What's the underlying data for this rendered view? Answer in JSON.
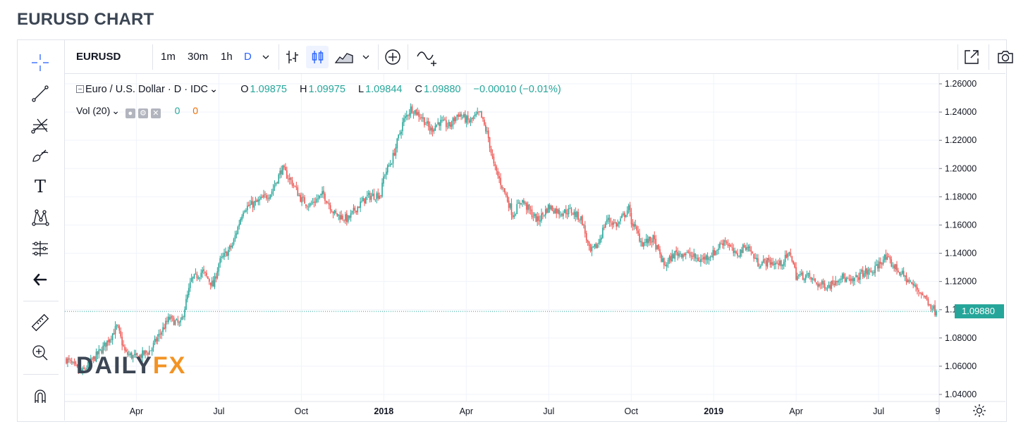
{
  "page": {
    "title": "EURUSD CHART"
  },
  "top_toolbar": {
    "symbol": "EURUSD",
    "intervals": [
      {
        "label": "1m",
        "active": false
      },
      {
        "label": "30m",
        "active": false
      },
      {
        "label": "1h",
        "active": false
      },
      {
        "label": "D",
        "active": true
      }
    ],
    "icons": [
      "chevron-down-icon",
      "bars-icon",
      "candles-icon",
      "area-chart-icon",
      "chevron-down-icon",
      "compare-add-icon",
      "indicators-icon",
      "fullscreen-icon",
      "screenshot-camera-icon"
    ]
  },
  "left_toolbar": {
    "tools": [
      "crosshair-icon",
      "trendline-icon",
      "fib-tool-icon",
      "brush-icon",
      "text-tool-icon",
      "pattern-tool-icon",
      "prediction-tool-icon",
      "back-arrow-icon",
      "ruler-icon",
      "zoom-in-icon",
      "magnet-icon"
    ],
    "text_tool_glyph": "T"
  },
  "legend": {
    "symbol_name": "Euro / U.S. Dollar · D · IDC",
    "open_label": "O",
    "open_value": "1.09875",
    "high_label": "H",
    "high_value": "1.09975",
    "low_label": "L",
    "low_value": "1.09844",
    "close_label": "C",
    "close_value": "1.09880",
    "change": "−0.00010 (−0.01%)",
    "volume_label": "Vol (20)",
    "volume_value_1": "0",
    "volume_value_2": "0"
  },
  "watermark": {
    "part1": "DAILY",
    "part2": "FX"
  },
  "last_price": "1.09880",
  "colors": {
    "up": "#26a69a",
    "down": "#ef5350",
    "accent": "#2962ff",
    "brand_orange": "#f39323",
    "grid": "#f0f3fa"
  },
  "chart_data": {
    "type": "candlestick",
    "title": "",
    "xlabel": "",
    "ylabel": "",
    "ylim": [
      1.033,
      1.264
    ],
    "y_ticks": [
      "1.26000",
      "1.24000",
      "1.22000",
      "1.20000",
      "1.18000",
      "1.16000",
      "1.14000",
      "1.12000",
      "1.10000",
      "1.08000",
      "1.06000",
      "1.04000"
    ],
    "x_ticks": [
      {
        "label": "Apr",
        "bold": false,
        "t": 2.0
      },
      {
        "label": "Jul",
        "bold": false,
        "t": 5.0
      },
      {
        "label": "Oct",
        "bold": false,
        "t": 8.0
      },
      {
        "label": "2018",
        "bold": true,
        "t": 11.0
      },
      {
        "label": "Apr",
        "bold": false,
        "t": 14.0
      },
      {
        "label": "Jul",
        "bold": false,
        "t": 17.0
      },
      {
        "label": "Oct",
        "bold": false,
        "t": 20.0
      },
      {
        "label": "2019",
        "bold": true,
        "t": 23.0
      },
      {
        "label": "Apr",
        "bold": false,
        "t": 26.0
      },
      {
        "label": "Jul",
        "bold": false,
        "t": 29.0
      },
      {
        "label": "9",
        "bold": false,
        "t": 31.15
      }
    ],
    "t_range": [
      -0.55,
      31.1
    ],
    "close_anchors": [
      [
        -0.55,
        1.065
      ],
      [
        0.0,
        1.055
      ],
      [
        0.3,
        1.062
      ],
      [
        0.75,
        1.072
      ],
      [
        1.3,
        1.088
      ],
      [
        1.6,
        1.069
      ],
      [
        2.0,
        1.066
      ],
      [
        2.5,
        1.071
      ],
      [
        2.8,
        1.081
      ],
      [
        3.2,
        1.094
      ],
      [
        3.6,
        1.089
      ],
      [
        4.0,
        1.121
      ],
      [
        4.4,
        1.127
      ],
      [
        4.8,
        1.117
      ],
      [
        5.0,
        1.133
      ],
      [
        5.5,
        1.146
      ],
      [
        5.9,
        1.172
      ],
      [
        6.4,
        1.176
      ],
      [
        6.9,
        1.183
      ],
      [
        7.3,
        1.2
      ],
      [
        7.7,
        1.189
      ],
      [
        8.0,
        1.178
      ],
      [
        8.3,
        1.174
      ],
      [
        8.8,
        1.182
      ],
      [
        9.2,
        1.168
      ],
      [
        9.7,
        1.164
      ],
      [
        10.0,
        1.172
      ],
      [
        10.4,
        1.18
      ],
      [
        10.9,
        1.182
      ],
      [
        11.0,
        1.195
      ],
      [
        11.3,
        1.206
      ],
      [
        11.7,
        1.233
      ],
      [
        12.0,
        1.243
      ],
      [
        12.4,
        1.236
      ],
      [
        12.7,
        1.227
      ],
      [
        13.0,
        1.233
      ],
      [
        13.4,
        1.23
      ],
      [
        13.7,
        1.239
      ],
      [
        14.1,
        1.233
      ],
      [
        14.5,
        1.239
      ],
      [
        14.8,
        1.222
      ],
      [
        15.0,
        1.202
      ],
      [
        15.4,
        1.183
      ],
      [
        15.7,
        1.167
      ],
      [
        16.0,
        1.178
      ],
      [
        16.3,
        1.17
      ],
      [
        16.6,
        1.163
      ],
      [
        17.0,
        1.173
      ],
      [
        17.4,
        1.169
      ],
      [
        17.8,
        1.17
      ],
      [
        18.2,
        1.164
      ],
      [
        18.5,
        1.14
      ],
      [
        18.8,
        1.147
      ],
      [
        19.1,
        1.164
      ],
      [
        19.5,
        1.16
      ],
      [
        19.9,
        1.172
      ],
      [
        20.0,
        1.163
      ],
      [
        20.4,
        1.147
      ],
      [
        20.8,
        1.15
      ],
      [
        21.2,
        1.131
      ],
      [
        21.6,
        1.14
      ],
      [
        22.0,
        1.14
      ],
      [
        22.5,
        1.135
      ],
      [
        23.0,
        1.14
      ],
      [
        23.4,
        1.15
      ],
      [
        23.8,
        1.138
      ],
      [
        24.2,
        1.146
      ],
      [
        24.6,
        1.133
      ],
      [
        25.0,
        1.134
      ],
      [
        25.4,
        1.132
      ],
      [
        25.8,
        1.14
      ],
      [
        26.0,
        1.124
      ],
      [
        26.4,
        1.124
      ],
      [
        26.8,
        1.118
      ],
      [
        27.2,
        1.117
      ],
      [
        27.6,
        1.124
      ],
      [
        28.0,
        1.119
      ],
      [
        28.4,
        1.126
      ],
      [
        28.8,
        1.127
      ],
      [
        29.2,
        1.137
      ],
      [
        29.5,
        1.132
      ],
      [
        29.9,
        1.124
      ],
      [
        30.2,
        1.118
      ],
      [
        30.5,
        1.113
      ],
      [
        30.8,
        1.106
      ],
      [
        31.05,
        1.099
      ]
    ],
    "last_close": 1.0988
  }
}
